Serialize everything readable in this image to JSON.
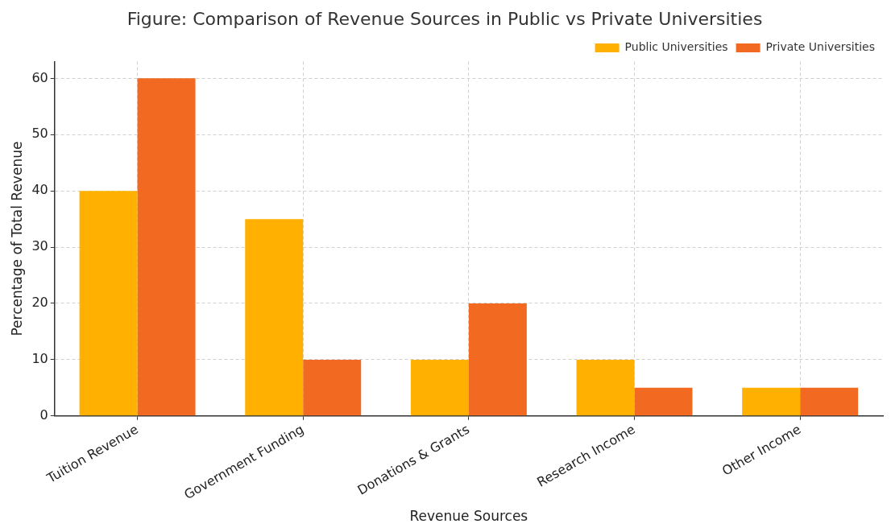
{
  "chart_data": {
    "type": "bar",
    "title": "Figure: Comparison of Revenue Sources in Public vs Private Universities",
    "xlabel": "Revenue Sources",
    "ylabel": "Percentage of Total Revenue",
    "categories": [
      "Tuition Revenue",
      "Government Funding",
      "Donations & Grants",
      "Research Income",
      "Other Income"
    ],
    "series": [
      {
        "name": "Public Universities",
        "color": "#ffb000",
        "values": [
          40,
          35,
          10,
          10,
          5
        ]
      },
      {
        "name": "Private Universities",
        "color": "#f26a21",
        "values": [
          60,
          10,
          20,
          5,
          5
        ]
      }
    ],
    "ylim": [
      0,
      63
    ],
    "yticks": [
      0,
      10,
      20,
      30,
      40,
      50,
      60
    ],
    "grid": true,
    "legend": "top right"
  }
}
